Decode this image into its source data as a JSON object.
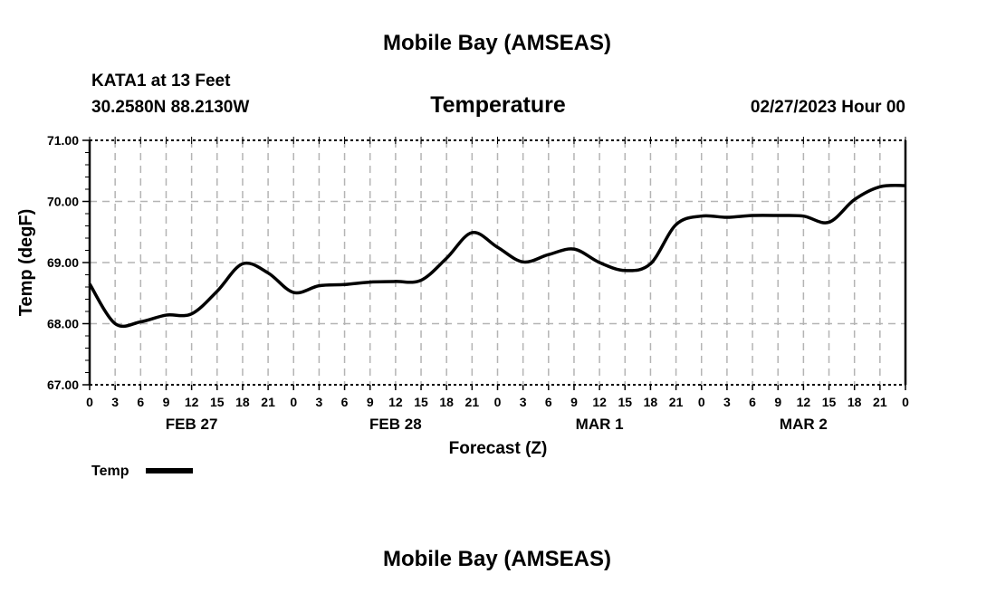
{
  "header": {
    "top_title": "Mobile Bay (AMSEAS)",
    "station": "KATA1 at 13 Feet",
    "coords": "30.2580N  88.2130W",
    "run_time": "02/27/2023 Hour 00",
    "bottom_title": "Mobile Bay (AMSEAS)"
  },
  "chart_data": {
    "type": "line",
    "title": "Temperature",
    "xlabel": "Forecast (Z)",
    "ylabel": "Temp (degF)",
    "ylim": [
      67,
      71
    ],
    "yticks": [
      "67.00",
      "68.00",
      "69.00",
      "70.00",
      "71.00"
    ],
    "xlim_hours": [
      0,
      96
    ],
    "xtick_labels": [
      "0",
      "3",
      "6",
      "9",
      "12",
      "15",
      "18",
      "21",
      "0",
      "3",
      "6",
      "9",
      "12",
      "15",
      "18",
      "21",
      "0",
      "3",
      "6",
      "9",
      "12",
      "15",
      "18",
      "21",
      "0",
      "3",
      "6",
      "9",
      "12",
      "15",
      "18",
      "21",
      "0"
    ],
    "day_labels": [
      {
        "label": "FEB 27",
        "hour": 12
      },
      {
        "label": "FEB 28",
        "hour": 36
      },
      {
        "label": "MAR 1",
        "hour": 60
      },
      {
        "label": "MAR 2",
        "hour": 84
      }
    ],
    "grid": true,
    "legend": {
      "label": "Temp",
      "placement": "bottom-left"
    },
    "series": [
      {
        "name": "Temp",
        "color": "#000000",
        "x": [
          0,
          3,
          6,
          9,
          12,
          15,
          18,
          21,
          24,
          27,
          30,
          33,
          36,
          39,
          42,
          45,
          48,
          51,
          54,
          57,
          60,
          63,
          66,
          69,
          72,
          75,
          78,
          81,
          84,
          87,
          90,
          93,
          96
        ],
        "values": [
          68.65,
          68.0,
          68.03,
          68.14,
          68.16,
          68.53,
          68.98,
          68.83,
          68.51,
          68.62,
          68.64,
          68.68,
          68.69,
          68.71,
          69.07,
          69.49,
          69.25,
          69.01,
          69.13,
          69.22,
          69.0,
          68.87,
          68.98,
          69.62,
          69.76,
          69.74,
          69.77,
          69.77,
          69.76,
          69.66,
          70.03,
          70.24,
          70.26
        ]
      }
    ]
  }
}
